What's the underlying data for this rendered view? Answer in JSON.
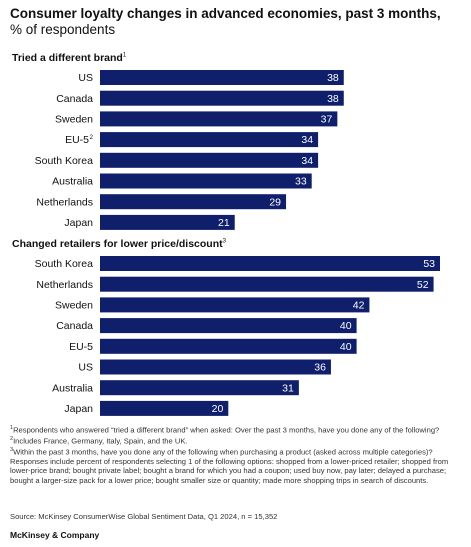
{
  "title": "Consumer loyalty changes in advanced economies, past 3 months,",
  "subtitle": "% of respondents",
  "colors": {
    "bar": "#0f1f6b",
    "bar_label": "#ffffff",
    "text": "#111111"
  },
  "chart_data": [
    {
      "type": "bar",
      "orientation": "horizontal",
      "title": "Tried a different brand",
      "title_note": "1",
      "categories": [
        "US",
        "Canada",
        "Sweden",
        "EU-5",
        "South Korea",
        "Australia",
        "Netherlands",
        "Japan"
      ],
      "category_notes": [
        "",
        "",
        "",
        "2",
        "",
        "",
        "",
        ""
      ],
      "values": [
        38,
        38,
        37,
        34,
        34,
        33,
        29,
        21
      ],
      "xlim": [
        0,
        53
      ]
    },
    {
      "type": "bar",
      "orientation": "horizontal",
      "title": "Changed retailers for lower price/discount",
      "title_note": "3",
      "categories": [
        "South Korea",
        "Netherlands",
        "Sweden",
        "Canada",
        "EU-5",
        "US",
        "Australia",
        "Japan"
      ],
      "category_notes": [
        "",
        "",
        "",
        "",
        "",
        "",
        "",
        ""
      ],
      "values": [
        53,
        52,
        42,
        40,
        40,
        36,
        31,
        20
      ],
      "xlim": [
        0,
        53
      ]
    }
  ],
  "footnotes": [
    {
      "mark": "1",
      "text": "Respondents who answered “tried a different brand” when asked: Over the past 3 months, have you done any of the following?"
    },
    {
      "mark": "2",
      "text": "Includes France, Germany, Italy, Spain, and the UK."
    },
    {
      "mark": "3",
      "text": "Within the past 3 months, have you done any of the following when purchasing a product (asked across multiple categories)? Responses include percent of respondents selecting 1 of the following options: shopped from a lower-priced retailer; shopped from lower-price brand; bought private label; bought a brand for which you had a coupon; used buy now, pay later; delayed a purchase; bought a larger-size pack for a lower price; bought smaller size or quantity; made more shopping trips in search of discounts."
    }
  ],
  "source": "Source: McKinsey ConsumerWise Global Sentiment Data, Q1 2024, n = 15,352",
  "brand": "McKinsey & Company"
}
